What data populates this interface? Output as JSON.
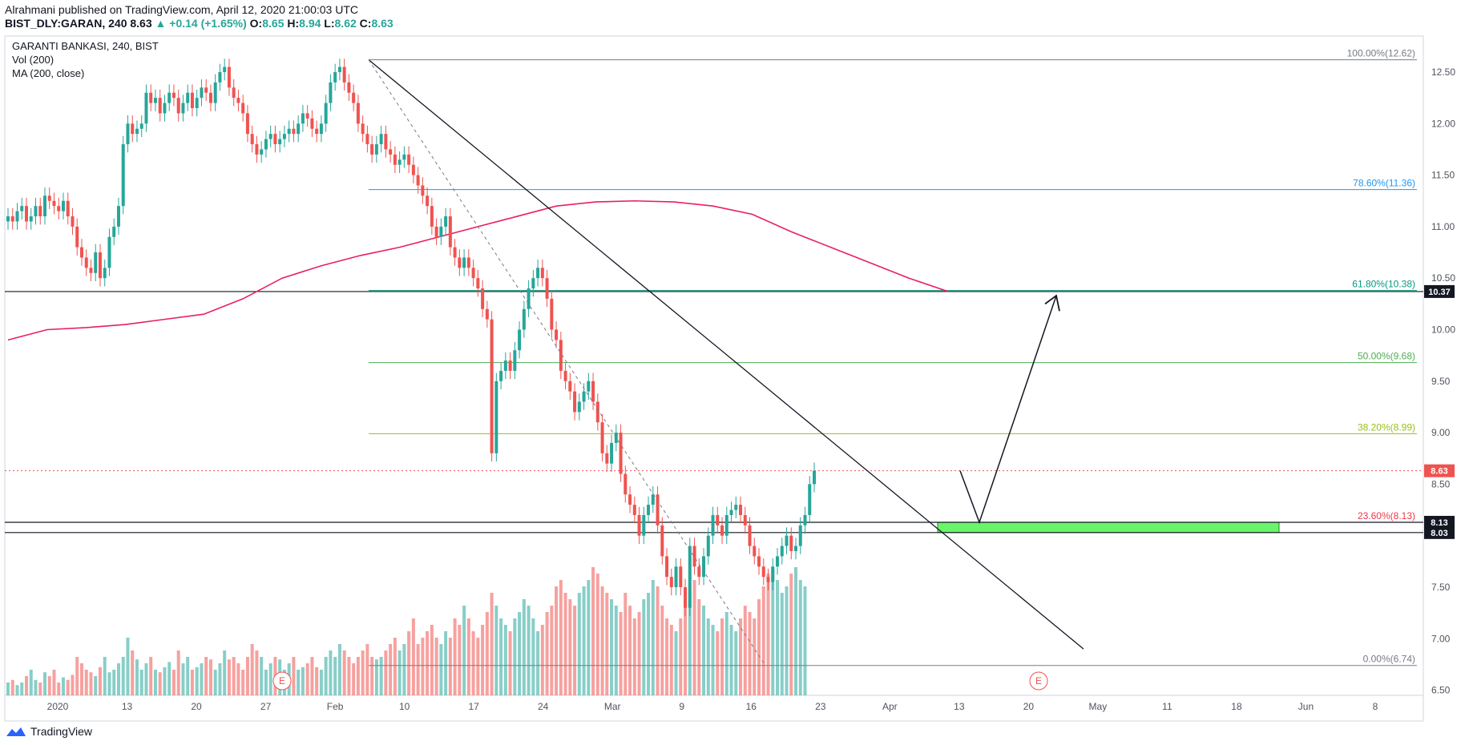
{
  "header": {
    "publisher_line": "Alrahmani published on TradingView.com, April 12, 2020 21:00:03 UTC",
    "symbol": "BIST_DLY:GARAN, 240",
    "last": "8.63",
    "change": "▲ +0.14 (+1.65%)",
    "o_label": "O:",
    "o_value": "8.65",
    "h_label": "H:",
    "h_value": "8.94",
    "l_label": "L:",
    "l_value": "8.62",
    "c_label": "C:",
    "c_value": "8.63"
  },
  "legend": {
    "title": "GARANTI BANKASI, 240, BIST",
    "vol": "Vol (200)",
    "ma": "MA (200, close)"
  },
  "footer": {
    "brand": "TradingView"
  },
  "colors": {
    "up": "#26a69a",
    "down": "#ef5350",
    "ma": "#e91e63",
    "fib_100": "#787b86",
    "fib_786": "#2196f3",
    "fib_618": "#089981",
    "fib_50": "#4caf50",
    "fib_382": "#9abf1a",
    "fib_236": "#f23645",
    "fib_0": "#787b86",
    "zone": "#69f569"
  },
  "chart_data": {
    "type": "candlestick",
    "title": "GARANTI BANKASI, 240, BIST",
    "y_ticks": [
      "12.50",
      "12.00",
      "11.50",
      "11.00",
      "10.50",
      "10.00",
      "9.50",
      "9.00",
      "8.50",
      "8.00",
      "7.50",
      "7.00",
      "6.50"
    ],
    "ylim": [
      6.45,
      12.85
    ],
    "x_ticks": [
      "2020",
      "13",
      "20",
      "27",
      "Feb",
      "10",
      "17",
      "24",
      "Mar",
      "9",
      "16",
      "23",
      "Apr",
      "13",
      "20",
      "May",
      "11",
      "18",
      "Jun",
      "8"
    ],
    "price_tags": [
      {
        "label": "10.37",
        "value": 10.37,
        "bg": "#131722"
      },
      {
        "label": "8.63",
        "value": 8.63,
        "bg": "#ef5350"
      },
      {
        "label": "8.13",
        "value": 8.13,
        "bg": "#131722"
      },
      {
        "label": "8.03",
        "value": 8.03,
        "bg": "#131722"
      }
    ],
    "fib_levels": [
      {
        "label": "100.00%(12.62)",
        "value": 12.62,
        "color": "#787b86"
      },
      {
        "label": "78.60%(11.36)",
        "value": 11.36,
        "color": "#2196f3"
      },
      {
        "label": "61.80%(10.38)",
        "value": 10.38,
        "color": "#089981"
      },
      {
        "label": "50.00%(9.68)",
        "value": 9.68,
        "color": "#4caf50"
      },
      {
        "label": "38.20%(8.99)",
        "value": 8.99,
        "color": "#9abf1a"
      },
      {
        "label": "23.60%(8.13)",
        "value": 8.13,
        "color": "#f23645"
      },
      {
        "label": "0.00%(6.74)",
        "value": 6.74,
        "color": "#787b86"
      }
    ],
    "earnings_markers": [
      "E",
      "E"
    ],
    "candles_close": [
      11.1,
      11.05,
      11.15,
      11.2,
      11.05,
      11.1,
      11.2,
      11.1,
      11.3,
      11.25,
      11.2,
      11.15,
      11.25,
      11.1,
      11.0,
      10.8,
      10.7,
      10.6,
      10.55,
      10.75,
      10.5,
      10.6,
      10.9,
      11.0,
      11.2,
      11.8,
      12.0,
      11.9,
      11.95,
      12.0,
      12.3,
      12.2,
      12.25,
      12.1,
      12.2,
      12.3,
      12.25,
      12.1,
      12.2,
      12.3,
      12.15,
      12.25,
      12.35,
      12.3,
      12.2,
      12.4,
      12.5,
      12.55,
      12.35,
      12.25,
      12.2,
      12.1,
      11.9,
      11.8,
      11.7,
      11.75,
      11.85,
      11.9,
      11.8,
      11.85,
      11.9,
      11.95,
      11.9,
      12.0,
      12.1,
      12.05,
      11.95,
      11.9,
      12.0,
      12.2,
      12.4,
      12.5,
      12.55,
      12.4,
      12.3,
      12.2,
      12.0,
      11.9,
      11.8,
      11.7,
      11.8,
      11.9,
      11.75,
      11.7,
      11.6,
      11.65,
      11.7,
      11.6,
      11.5,
      11.4,
      11.3,
      11.2,
      11.0,
      10.9,
      11.0,
      11.1,
      10.8,
      10.7,
      10.6,
      10.7,
      10.6,
      10.5,
      10.4,
      10.2,
      10.1,
      8.8,
      9.5,
      9.6,
      9.7,
      9.6,
      9.8,
      10.0,
      10.2,
      10.4,
      10.5,
      10.6,
      10.5,
      10.3,
      10.0,
      9.9,
      9.6,
      9.5,
      9.4,
      9.2,
      9.3,
      9.4,
      9.5,
      9.3,
      9.1,
      8.8,
      8.7,
      8.9,
      9.0,
      8.6,
      8.4,
      8.3,
      8.2,
      8.0,
      8.2,
      8.3,
      8.4,
      8.1,
      7.8,
      7.6,
      7.5,
      7.7,
      7.5,
      7.3,
      7.9,
      7.7,
      7.6,
      7.8,
      8.0,
      8.2,
      8.1,
      8.0,
      8.2,
      8.25,
      8.3,
      8.2,
      8.1,
      7.9,
      7.8,
      7.7,
      7.6,
      7.55,
      7.7,
      7.8,
      7.9,
      8.0,
      7.85,
      7.9,
      8.1,
      8.2,
      8.5,
      8.63
    ],
    "ma_200": [
      9.9,
      10.0,
      10.02,
      10.05,
      10.1,
      10.15,
      10.3,
      10.5,
      10.62,
      10.72,
      10.8,
      10.9,
      11.0,
      11.1,
      11.2,
      11.24,
      11.25,
      11.24,
      11.2,
      11.12,
      10.95,
      10.8,
      10.65,
      10.5,
      10.37
    ],
    "volume_relative": [
      0.1,
      0.12,
      0.08,
      0.1,
      0.15,
      0.2,
      0.12,
      0.1,
      0.18,
      0.15,
      0.2,
      0.1,
      0.14,
      0.12,
      0.16,
      0.3,
      0.25,
      0.2,
      0.18,
      0.15,
      0.22,
      0.3,
      0.18,
      0.2,
      0.25,
      0.3,
      0.45,
      0.35,
      0.28,
      0.2,
      0.25,
      0.3,
      0.2,
      0.18,
      0.22,
      0.26,
      0.2,
      0.35,
      0.25,
      0.3,
      0.2,
      0.22,
      0.25,
      0.3,
      0.28,
      0.2,
      0.25,
      0.35,
      0.28,
      0.3,
      0.25,
      0.2,
      0.3,
      0.4,
      0.35,
      0.3,
      0.2,
      0.25,
      0.3,
      0.28,
      0.2,
      0.25,
      0.3,
      0.2,
      0.22,
      0.25,
      0.3,
      0.22,
      0.2,
      0.3,
      0.35,
      0.3,
      0.4,
      0.35,
      0.3,
      0.25,
      0.3,
      0.35,
      0.4,
      0.3,
      0.28,
      0.3,
      0.35,
      0.4,
      0.45,
      0.35,
      0.4,
      0.5,
      0.6,
      0.4,
      0.45,
      0.5,
      0.55,
      0.45,
      0.4,
      0.5,
      0.45,
      0.6,
      0.55,
      0.7,
      0.6,
      0.5,
      0.45,
      0.55,
      0.65,
      0.8,
      0.7,
      0.6,
      0.55,
      0.5,
      0.6,
      0.65,
      0.75,
      0.7,
      0.6,
      0.5,
      0.55,
      0.65,
      0.7,
      0.85,
      0.9,
      0.8,
      0.75,
      0.7,
      0.8,
      0.85,
      0.9,
      1.0,
      0.95,
      0.85,
      0.8,
      0.75,
      0.7,
      0.65,
      0.8,
      0.7,
      0.6,
      0.65,
      0.75,
      0.8,
      0.9,
      0.85,
      0.7,
      0.6,
      0.55,
      0.5,
      0.6,
      0.7,
      0.8,
      0.9,
      0.75,
      0.7,
      0.6,
      0.55,
      0.5,
      0.6,
      0.65,
      0.55,
      0.5,
      0.6,
      0.7,
      0.65,
      0.6,
      0.75,
      0.85,
      0.95,
      1.0,
      0.9,
      0.8,
      0.85,
      0.95,
      1.0,
      0.9,
      0.85
    ]
  }
}
